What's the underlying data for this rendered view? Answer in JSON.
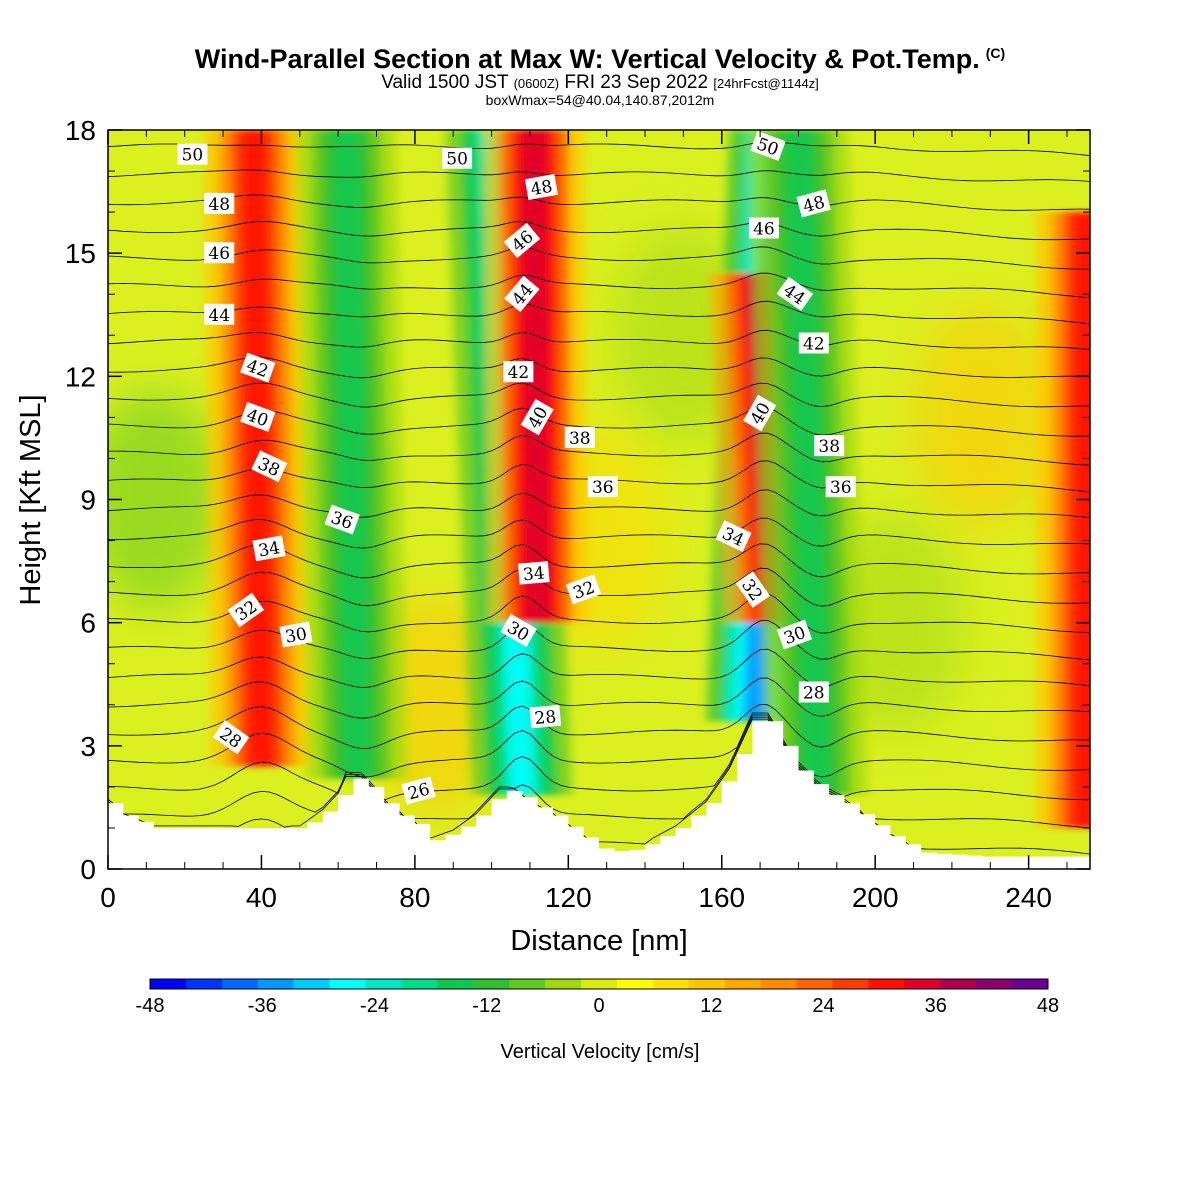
{
  "title": {
    "main": "Wind-Parallel Section at Max W: Vertical Velocity & Pot.Temp.",
    "copyright": "(C)",
    "valid_prefix": "Valid 1500 JST",
    "valid_utc": "(0600Z)",
    "valid_date": "FRI 23 Sep 2022",
    "forecast": "[24hrFcst@1144z]",
    "box_info": "boxWmax=54@40.04,140.87,2012m"
  },
  "chart_data": {
    "type": "heatmap",
    "xlabel": "Distance [nm]",
    "ylabel": "Height [Kft MSL]",
    "xlim": [
      0,
      256
    ],
    "ylim": [
      0,
      18
    ],
    "x_ticks": [
      0,
      40,
      80,
      120,
      160,
      200,
      240
    ],
    "y_ticks": [
      0,
      3,
      6,
      9,
      12,
      15,
      18
    ],
    "colorbar": {
      "label": "Vertical Velocity [cm/s]",
      "range": [
        -48,
        48
      ],
      "ticks": [
        -48,
        -36,
        -24,
        -12,
        0,
        12,
        24,
        36,
        48
      ],
      "colors": [
        "#0000ff",
        "#0033ff",
        "#0066ff",
        "#0099ff",
        "#00ccff",
        "#00ffff",
        "#00e6c0",
        "#00dd88",
        "#10c850",
        "#30c030",
        "#60c820",
        "#a0d810",
        "#d8ec10",
        "#ffff00",
        "#ffe000",
        "#ffc400",
        "#ffa800",
        "#ff8c00",
        "#ff6400",
        "#ff3c00",
        "#ff1000",
        "#e0002a",
        "#b00050",
        "#880070",
        "#6a0090"
      ]
    },
    "vertical_velocity_features": [
      {
        "x_base": 40,
        "x_top": 38,
        "z_bottom": 2.5,
        "z_top": 18,
        "w": 32,
        "kind": "updraft"
      },
      {
        "x_base": 65,
        "x_top": 62,
        "z_bottom": 2.2,
        "z_top": 18,
        "w": -14,
        "kind": "downdraft"
      },
      {
        "x_base": 108,
        "x_top": 101,
        "z_bottom": 1.8,
        "z_top": 18,
        "w": -26,
        "kind": "downdraft"
      },
      {
        "x_base": 112,
        "x_top": 111,
        "z_bottom": 6,
        "z_top": 18,
        "w": 36,
        "kind": "updraft"
      },
      {
        "x_base": 169,
        "x_top": 175,
        "z_bottom": 3.6,
        "z_top": 18,
        "w": -36,
        "kind": "downdraft"
      },
      {
        "x_base": 174,
        "x_top": 170,
        "z_bottom": 6,
        "z_top": 14.5,
        "w": 40,
        "kind": "updraft"
      },
      {
        "x_base": 185,
        "x_top": 180,
        "z_bottom": 1.8,
        "z_top": 18,
        "w": -14,
        "kind": "downdraft"
      },
      {
        "x_base": 255,
        "x_top": 255,
        "z_bottom": 1,
        "z_top": 16,
        "w": 32,
        "kind": "updraft"
      }
    ],
    "terrain_height_kft": [
      [
        0,
        1.6
      ],
      [
        4,
        1.3
      ],
      [
        12,
        1.0
      ],
      [
        30,
        1.0
      ],
      [
        50,
        1.0
      ],
      [
        56,
        1.4
      ],
      [
        60,
        1.8
      ],
      [
        62,
        2.2
      ],
      [
        66,
        2.2
      ],
      [
        70,
        1.8
      ],
      [
        74,
        1.4
      ],
      [
        80,
        1.1
      ],
      [
        84,
        0.7
      ],
      [
        90,
        0.9
      ],
      [
        96,
        1.3
      ],
      [
        102,
        1.9
      ],
      [
        106,
        1.9
      ],
      [
        110,
        1.6
      ],
      [
        116,
        1.3
      ],
      [
        122,
        0.9
      ],
      [
        128,
        0.5
      ],
      [
        134,
        0.4
      ],
      [
        140,
        0.6
      ],
      [
        148,
        1.0
      ],
      [
        156,
        1.6
      ],
      [
        162,
        2.4
      ],
      [
        166,
        3.2
      ],
      [
        168,
        3.6
      ],
      [
        172,
        3.6
      ],
      [
        176,
        3.0
      ],
      [
        180,
        2.4
      ],
      [
        186,
        1.9
      ],
      [
        192,
        1.6
      ],
      [
        198,
        1.2
      ],
      [
        204,
        0.8
      ],
      [
        212,
        0.4
      ],
      [
        228,
        0.3
      ],
      [
        256,
        0.3
      ]
    ],
    "theta_contour_levels": [
      26,
      27,
      28,
      29,
      30,
      31,
      32,
      33,
      34,
      35,
      36,
      37,
      38,
      39,
      40,
      41,
      42,
      43,
      44,
      45,
      46,
      47,
      48,
      49,
      50,
      51
    ],
    "theta_contour_labels": [
      {
        "value": 50,
        "x": 22,
        "z": 17.4,
        "angle": 0
      },
      {
        "value": 48,
        "x": 29,
        "z": 16.2,
        "angle": 0
      },
      {
        "value": 46,
        "x": 29,
        "z": 15.0,
        "angle": 0
      },
      {
        "value": 44,
        "x": 29,
        "z": 13.5,
        "angle": 0
      },
      {
        "value": 42,
        "x": 39,
        "z": 12.2,
        "angle": 20
      },
      {
        "value": 40,
        "x": 39,
        "z": 11.0,
        "angle": 20
      },
      {
        "value": 38,
        "x": 42,
        "z": 9.8,
        "angle": 25
      },
      {
        "value": 36,
        "x": 61,
        "z": 8.5,
        "angle": 20
      },
      {
        "value": 34,
        "x": 42,
        "z": 7.8,
        "angle": -10
      },
      {
        "value": 32,
        "x": 36,
        "z": 6.3,
        "angle": -35
      },
      {
        "value": 30,
        "x": 49,
        "z": 5.7,
        "angle": -10
      },
      {
        "value": 28,
        "x": 32,
        "z": 3.2,
        "angle": 35
      },
      {
        "value": 26,
        "x": 81,
        "z": 1.9,
        "angle": -15
      },
      {
        "value": 50,
        "x": 91,
        "z": 17.3,
        "angle": 0
      },
      {
        "value": 48,
        "x": 113,
        "z": 16.6,
        "angle": -10
      },
      {
        "value": 46,
        "x": 108,
        "z": 15.3,
        "angle": -40
      },
      {
        "value": 44,
        "x": 108,
        "z": 14.0,
        "angle": -50
      },
      {
        "value": 42,
        "x": 107,
        "z": 12.1,
        "angle": 0
      },
      {
        "value": 40,
        "x": 112,
        "z": 11.0,
        "angle": -60
      },
      {
        "value": 38,
        "x": 123,
        "z": 10.5,
        "angle": 0
      },
      {
        "value": 36,
        "x": 129,
        "z": 9.3,
        "angle": 0
      },
      {
        "value": 34,
        "x": 111,
        "z": 7.2,
        "angle": -5
      },
      {
        "value": 32,
        "x": 124,
        "z": 6.8,
        "angle": -20
      },
      {
        "value": 30,
        "x": 107,
        "z": 5.8,
        "angle": 30
      },
      {
        "value": 28,
        "x": 114,
        "z": 3.7,
        "angle": -5
      },
      {
        "value": 50,
        "x": 172,
        "z": 17.6,
        "angle": 20
      },
      {
        "value": 48,
        "x": 184,
        "z": 16.2,
        "angle": -15
      },
      {
        "value": 46,
        "x": 171,
        "z": 15.6,
        "angle": 0
      },
      {
        "value": 44,
        "x": 179,
        "z": 14.0,
        "angle": 35
      },
      {
        "value": 42,
        "x": 184,
        "z": 12.8,
        "angle": 0
      },
      {
        "value": 40,
        "x": 170,
        "z": 11.1,
        "angle": -60
      },
      {
        "value": 38,
        "x": 188,
        "z": 10.3,
        "angle": 0
      },
      {
        "value": 36,
        "x": 191,
        "z": 9.3,
        "angle": 0
      },
      {
        "value": 34,
        "x": 163,
        "z": 8.1,
        "angle": 25
      },
      {
        "value": 32,
        "x": 168,
        "z": 6.8,
        "angle": 55
      },
      {
        "value": 30,
        "x": 179,
        "z": 5.7,
        "angle": -20
      },
      {
        "value": 28,
        "x": 184,
        "z": 4.3,
        "angle": 0
      }
    ]
  }
}
